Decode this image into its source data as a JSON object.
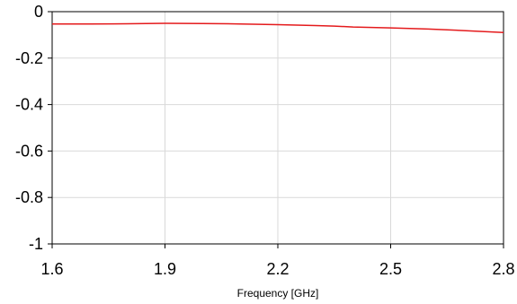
{
  "chart_data": {
    "type": "line",
    "title": "",
    "xlabel": "Frequency [GHz]",
    "ylabel": "",
    "xlim": [
      1.6,
      2.8
    ],
    "ylim": [
      -1,
      0
    ],
    "xticks": [
      1.6,
      1.9,
      2.2,
      2.5,
      2.8
    ],
    "yticks": [
      0,
      -0.2,
      -0.4,
      -0.6,
      -0.8,
      -1
    ],
    "xtick_labels": [
      "1.6",
      "1.9",
      "2.2",
      "2.5",
      "2.8"
    ],
    "ytick_labels": [
      "0",
      "-0.2",
      "-0.4",
      "-0.6",
      "-0.8",
      "-1"
    ],
    "grid": true,
    "series": [
      {
        "color": "#e41a1c",
        "x": [
          1.6,
          1.7,
          1.8,
          1.9,
          2.0,
          2.1,
          2.2,
          2.3,
          2.35,
          2.4,
          2.5,
          2.6,
          2.7,
          2.8
        ],
        "y": [
          -0.053,
          -0.053,
          -0.052,
          -0.05,
          -0.051,
          -0.053,
          -0.056,
          -0.06,
          -0.062,
          -0.066,
          -0.07,
          -0.075,
          -0.082,
          -0.09
        ]
      }
    ]
  }
}
